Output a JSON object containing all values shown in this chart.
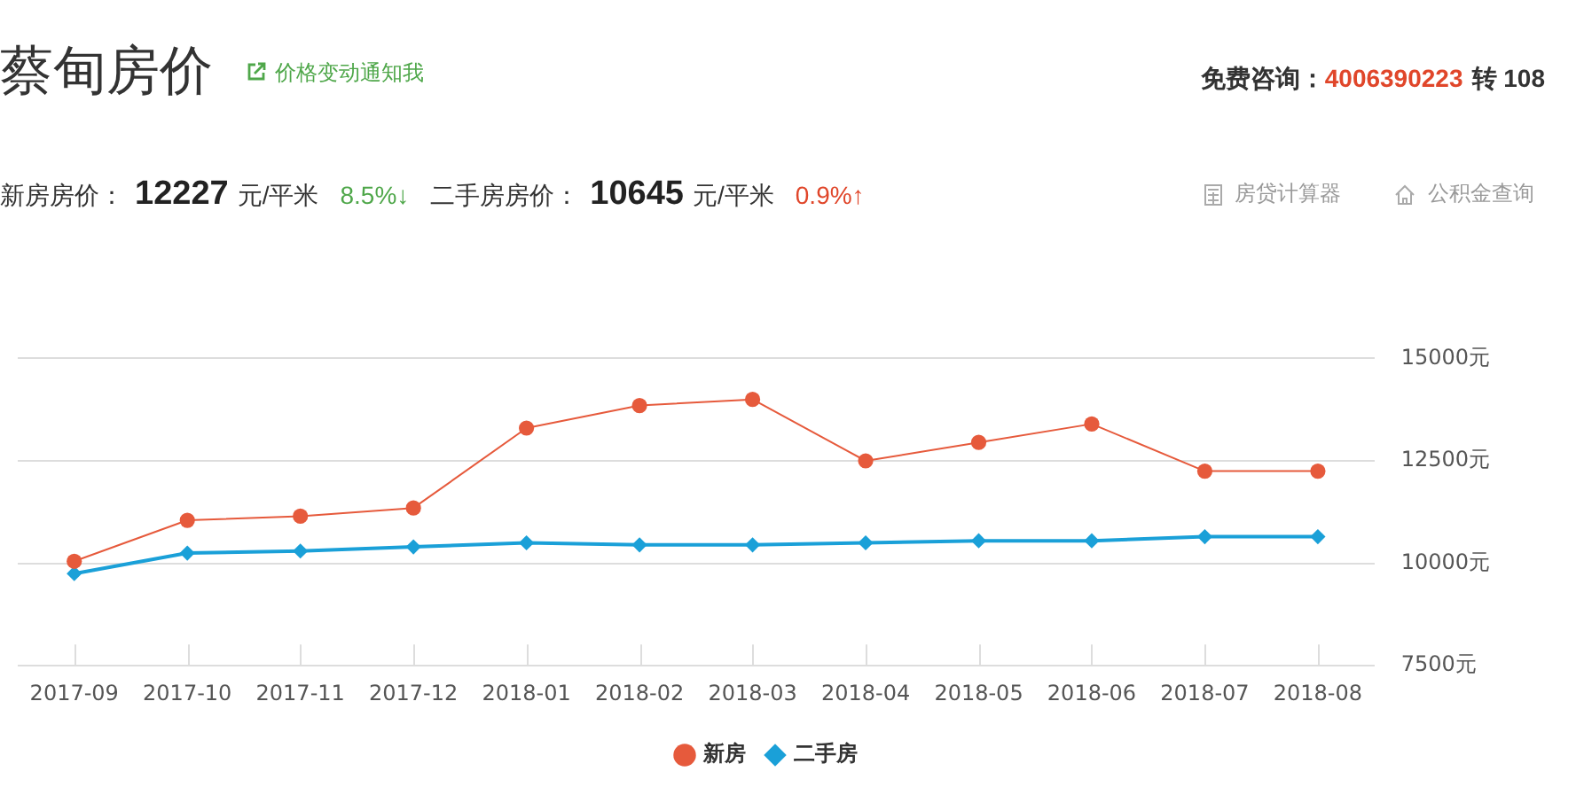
{
  "chart_data": {
    "type": "line",
    "title": "蔡甸房价",
    "annotations": [
      "价格变动通知我",
      "免费咨询：",
      "4006390223",
      "转 108",
      "新房房价：",
      "12227",
      "元/平米",
      "8.5%↓",
      "二手房房价：",
      "10645",
      "元/平米",
      "0.9%↑",
      "房贷计算器",
      "公积金查询"
    ],
    "categories": [
      "2017-09",
      "2017-10",
      "2017-11",
      "2017-12",
      "2018-01",
      "2018-02",
      "2018-03",
      "2018-04",
      "2018-05",
      "2018-06",
      "2018-07",
      "2018-08"
    ],
    "series": [
      {
        "name": "新房",
        "color": "#e65a3c",
        "marker": "circle",
        "values": [
          10050,
          11050,
          11150,
          11350,
          13300,
          13850,
          14000,
          12500,
          12950,
          13400,
          12250,
          12250
        ]
      },
      {
        "name": "二手房",
        "color": "#1aa0d8",
        "marker": "diamond",
        "values": [
          9750,
          10250,
          10300,
          10400,
          10500,
          10450,
          10450,
          10500,
          10550,
          10550,
          10650,
          10650
        ]
      }
    ],
    "ylim": [
      7500,
      15000
    ],
    "yticks": [
      {
        "value": 7500,
        "label": "7500元"
      },
      {
        "value": 10000,
        "label": "10000元"
      },
      {
        "value": 12500,
        "label": "12500元"
      },
      {
        "value": 15000,
        "label": "15000元"
      }
    ],
    "grid": "y",
    "legend": "bottom",
    "line_style": "solid"
  }
}
